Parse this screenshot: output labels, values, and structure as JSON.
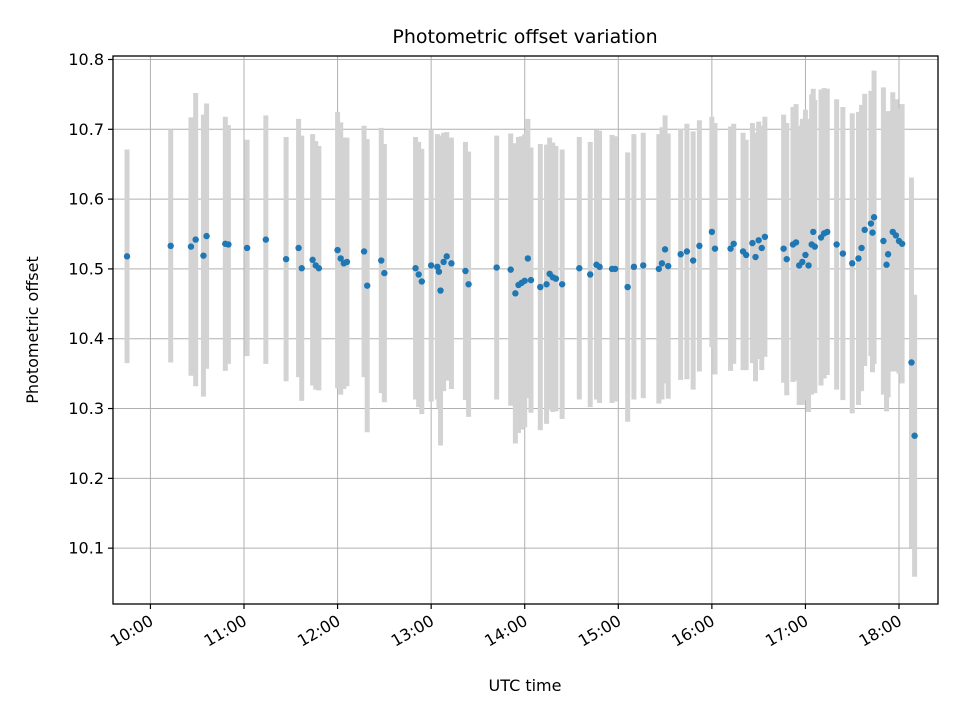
{
  "chart_data": {
    "type": "scatter",
    "title": "Photometric offset variation",
    "xlabel": "UTC time",
    "ylabel": "Photometric offset",
    "xlim": [
      "09:36",
      "18:25"
    ],
    "ylim": [
      10.02,
      10.805
    ],
    "grid": true,
    "x_ticks": [
      "10:00",
      "11:00",
      "12:00",
      "13:00",
      "14:00",
      "15:00",
      "16:00",
      "17:00",
      "18:00"
    ],
    "y_ticks": [
      "10.1",
      "10.2",
      "10.3",
      "10.4",
      "10.5",
      "10.6",
      "10.7",
      "10.8"
    ],
    "colors": {
      "points": "#1f77b4",
      "error_bars": "#d3d3d3",
      "grid": "#b0b0b0"
    },
    "series": [
      {
        "x": [
          "09:45",
          "10:13",
          "10:26",
          "10:29",
          "10:34",
          "10:36",
          "10:48",
          "10:50",
          "11:02",
          "11:14",
          "11:27",
          "11:35",
          "11:37",
          "11:44",
          "11:46",
          "11:48",
          "12:00",
          "12:02",
          "12:04",
          "12:06",
          "12:17",
          "12:19",
          "12:28",
          "12:30",
          "12:50",
          "12:52",
          "12:54",
          "13:00",
          "13:04",
          "13:05",
          "13:06",
          "13:08",
          "13:10",
          "13:13",
          "13:22",
          "13:24",
          "13:42",
          "13:51",
          "13:54",
          "13:56",
          "13:58",
          "14:00",
          "14:02",
          "14:04",
          "14:10",
          "14:14",
          "14:16",
          "14:18",
          "14:20",
          "14:24",
          "14:35",
          "14:42",
          "14:46",
          "14:48",
          "14:56",
          "14:58",
          "15:06",
          "15:10",
          "15:16",
          "15:26",
          "15:28",
          "15:30",
          "15:32",
          "15:40",
          "15:44",
          "15:48",
          "15:52",
          "16:00",
          "16:02",
          "16:12",
          "16:14",
          "16:20",
          "16:22",
          "16:26",
          "16:28",
          "16:30",
          "16:32",
          "16:34",
          "16:46",
          "16:48",
          "16:52",
          "16:54",
          "16:56",
          "16:58",
          "17:00",
          "17:02",
          "17:04",
          "17:05",
          "17:06",
          "17:10",
          "17:12",
          "17:14",
          "17:20",
          "17:24",
          "17:30",
          "17:34",
          "17:36",
          "17:38",
          "17:42",
          "17:43",
          "17:44",
          "17:50",
          "17:52",
          "17:53",
          "17:56",
          "17:58",
          "18:00",
          "18:02",
          "18:08",
          "18:10"
        ],
        "y": [
          10.518,
          10.533,
          10.532,
          10.542,
          10.519,
          10.547,
          10.536,
          10.535,
          10.53,
          10.542,
          10.514,
          10.53,
          10.501,
          10.513,
          10.505,
          10.501,
          10.527,
          10.515,
          10.508,
          10.51,
          10.525,
          10.476,
          10.512,
          10.494,
          10.501,
          10.492,
          10.482,
          10.505,
          10.503,
          10.496,
          10.469,
          10.51,
          10.518,
          10.508,
          10.497,
          10.478,
          10.502,
          10.499,
          10.465,
          10.477,
          10.48,
          10.483,
          10.515,
          10.484,
          10.474,
          10.478,
          10.493,
          10.488,
          10.486,
          10.478,
          10.501,
          10.492,
          10.506,
          10.503,
          10.5,
          10.5,
          10.474,
          10.503,
          10.505,
          10.5,
          10.508,
          10.528,
          10.504,
          10.521,
          10.525,
          10.512,
          10.533,
          10.553,
          10.529,
          10.529,
          10.536,
          10.525,
          10.52,
          10.537,
          10.517,
          10.541,
          10.53,
          10.546,
          10.529,
          10.514,
          10.535,
          10.538,
          10.505,
          10.51,
          10.52,
          10.505,
          10.535,
          10.553,
          10.532,
          10.545,
          10.551,
          10.553,
          10.535,
          10.522,
          10.508,
          10.515,
          10.53,
          10.556,
          10.565,
          10.552,
          10.574,
          10.54,
          10.506,
          10.521,
          10.553,
          10.548,
          10.54,
          10.536,
          10.366,
          10.261
        ],
        "err": [
          0.153,
          0.167,
          0.185,
          0.21,
          0.202,
          0.19,
          0.182,
          0.171,
          0.155,
          0.178,
          0.175,
          0.185,
          0.19,
          0.18,
          0.178,
          0.175,
          0.198,
          0.195,
          0.18,
          0.178,
          0.18,
          0.21,
          0.19,
          0.185,
          0.188,
          0.19,
          0.19,
          0.195,
          0.19,
          0.195,
          0.222,
          0.185,
          0.178,
          0.18,
          0.185,
          0.19,
          0.189,
          0.195,
          0.215,
          0.212,
          0.21,
          0.21,
          0.2,
          0.19,
          0.205,
          0.2,
          0.195,
          0.193,
          0.19,
          0.193,
          0.188,
          0.19,
          0.193,
          0.195,
          0.192,
          0.19,
          0.193,
          0.19,
          0.19,
          0.193,
          0.195,
          0.192,
          0.19,
          0.18,
          0.183,
          0.185,
          0.18,
          0.165,
          0.18,
          0.175,
          0.172,
          0.17,
          0.165,
          0.172,
          0.178,
          0.17,
          0.175,
          0.172,
          0.192,
          0.195,
          0.197,
          0.198,
          0.2,
          0.205,
          0.208,
          0.21,
          0.215,
          0.205,
          0.21,
          0.212,
          0.208,
          0.205,
          0.208,
          0.21,
          0.215,
          0.21,
          0.205,
          0.195,
          0.19,
          0.2,
          0.21,
          0.22,
          0.21,
          0.205,
          0.2,
          0.195,
          0.19,
          0.2,
          0.265,
          0.202
        ]
      }
    ]
  }
}
